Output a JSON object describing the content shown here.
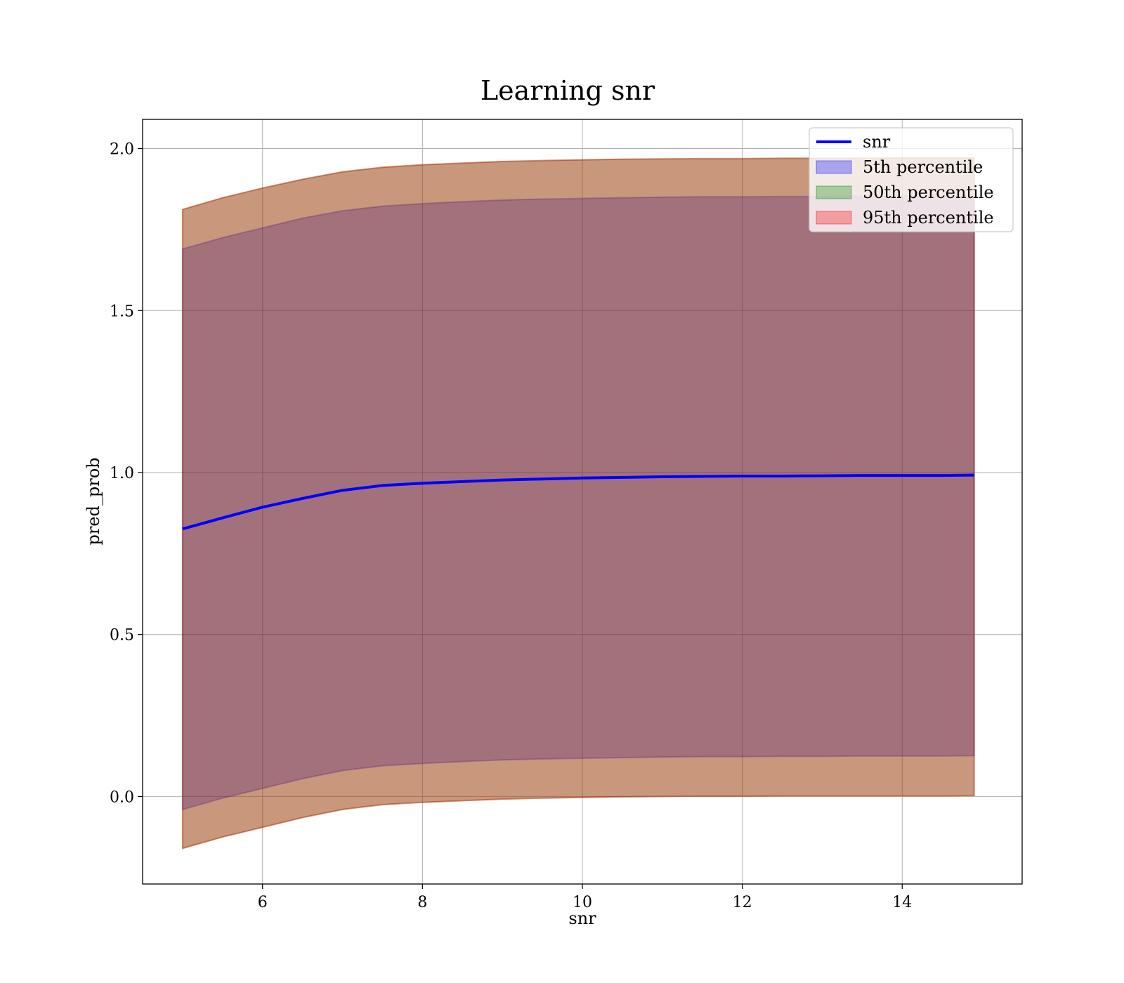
{
  "chart_data": {
    "type": "area",
    "title": "Learning snr",
    "xlabel": "snr",
    "ylabel": "pred_prob",
    "xlim": [
      4.5,
      15.5
    ],
    "ylim": [
      -0.27,
      2.09
    ],
    "x_ticks": [
      6,
      8,
      10,
      12,
      14
    ],
    "x_tick_labels": [
      "6",
      "8",
      "10",
      "12",
      "14"
    ],
    "y_ticks": [
      0.0,
      0.5,
      1.0,
      1.5,
      2.0
    ],
    "y_tick_labels": [
      "0.0",
      "0.5",
      "1.0",
      "1.5",
      "2.0"
    ],
    "grid": true,
    "legend_position": "top-right",
    "x": [
      5.0,
      5.5,
      6.0,
      6.5,
      7.0,
      7.5,
      8.0,
      8.5,
      9.0,
      9.5,
      10.0,
      10.5,
      11.0,
      11.5,
      12.0,
      12.5,
      13.0,
      13.5,
      14.0,
      14.5,
      14.9
    ],
    "line": {
      "name": "snr",
      "color": "#0000ff",
      "y": [
        0.826,
        0.86,
        0.893,
        0.92,
        0.945,
        0.96,
        0.967,
        0.972,
        0.977,
        0.98,
        0.983,
        0.985,
        0.987,
        0.988,
        0.989,
        0.989,
        0.99,
        0.991,
        0.991,
        0.991,
        0.992
      ]
    },
    "bands": [
      {
        "name": "5th percentile",
        "color": "#0000ff",
        "lower": [
          -0.04,
          -0.005,
          0.025,
          0.055,
          0.08,
          0.095,
          0.102,
          0.108,
          0.113,
          0.116,
          0.118,
          0.12,
          0.122,
          0.123,
          0.123,
          0.124,
          0.124,
          0.125,
          0.125,
          0.125,
          0.126
        ],
        "upper": [
          1.69,
          1.725,
          1.755,
          1.785,
          1.808,
          1.822,
          1.83,
          1.836,
          1.841,
          1.844,
          1.846,
          1.848,
          1.85,
          1.851,
          1.851,
          1.852,
          1.852,
          1.853,
          1.853,
          1.853,
          1.853
        ]
      },
      {
        "name": "50th percentile",
        "color": "#008000",
        "lower": [
          -0.16,
          -0.125,
          -0.095,
          -0.065,
          -0.04,
          -0.025,
          -0.018,
          -0.013,
          -0.008,
          -0.005,
          -0.003,
          -0.001,
          0.0,
          0.001,
          0.001,
          0.002,
          0.002,
          0.002,
          0.002,
          0.002,
          0.003
        ],
        "upper": [
          1.812,
          1.848,
          1.878,
          1.905,
          1.928,
          1.942,
          1.95,
          1.955,
          1.96,
          1.963,
          1.965,
          1.967,
          1.968,
          1.969,
          1.969,
          1.97,
          1.97,
          1.97,
          1.971,
          1.971,
          1.971
        ]
      },
      {
        "name": "95th percentile",
        "color": "#ff0000",
        "lower": [
          -0.16,
          -0.125,
          -0.095,
          -0.065,
          -0.04,
          -0.025,
          -0.018,
          -0.013,
          -0.008,
          -0.005,
          -0.003,
          -0.001,
          0.0,
          0.001,
          0.001,
          0.002,
          0.002,
          0.002,
          0.002,
          0.002,
          0.003
        ],
        "upper": [
          1.812,
          1.848,
          1.878,
          1.905,
          1.928,
          1.942,
          1.95,
          1.955,
          1.96,
          1.963,
          1.965,
          1.967,
          1.968,
          1.969,
          1.969,
          1.97,
          1.97,
          1.97,
          1.971,
          1.971,
          1.971
        ]
      }
    ]
  }
}
